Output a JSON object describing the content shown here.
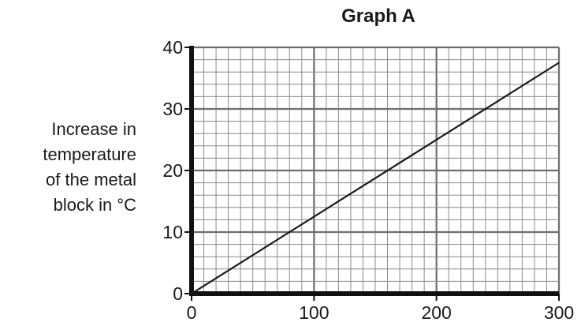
{
  "chart_data": {
    "type": "line",
    "title": "Graph A",
    "xlabel": "",
    "ylabel_lines": [
      "Increase in",
      "temperature",
      "of the metal",
      "block in °C"
    ],
    "x_ticks": [
      "0",
      "100",
      "200",
      "300"
    ],
    "y_ticks": [
      "0",
      "10",
      "20",
      "30",
      "40"
    ],
    "xlim": [
      0,
      300
    ],
    "ylim": [
      0,
      40
    ],
    "grid": {
      "on": true,
      "minor_x_step": 10,
      "minor_y_step": 2,
      "major_x_step": 100,
      "major_y_step": 10
    },
    "series": [
      {
        "x": [
          0,
          300
        ],
        "y": [
          0,
          37.5
        ]
      }
    ],
    "colors": {
      "line": "#1a1a1a",
      "axis": "#111111",
      "grid_minor": "#8a8a8a",
      "grid_major": "#6e6e6e"
    }
  }
}
